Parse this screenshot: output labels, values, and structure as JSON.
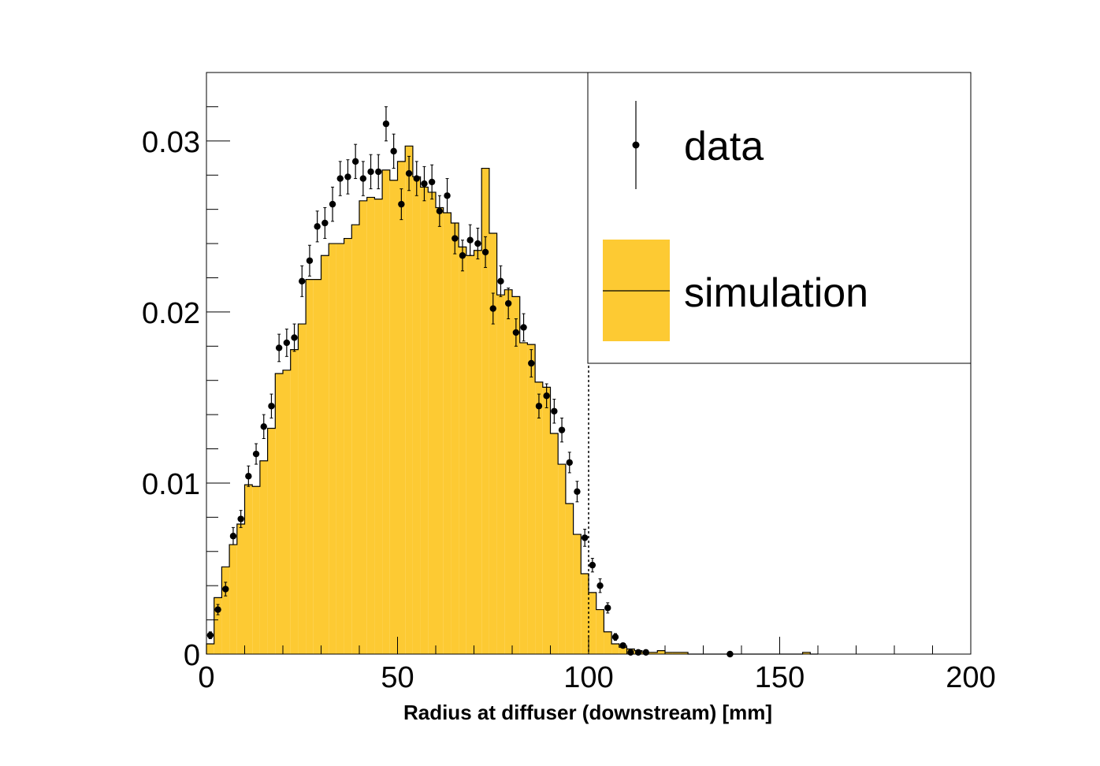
{
  "chart_data": {
    "type": "bar",
    "title": "",
    "xlabel": "Radius at diffuser (downstream) [mm]",
    "ylabel": "",
    "xlim": [
      0,
      200
    ],
    "ylim": [
      0,
      0.034
    ],
    "x_tick_labels": [
      "0",
      "50",
      "100",
      "150",
      "200"
    ],
    "y_tick_labels": [
      "0",
      "0.01",
      "0.02",
      "0.03"
    ],
    "x_ticks": [
      0,
      50,
      100,
      150,
      200
    ],
    "y_ticks": [
      0,
      0.01,
      0.02,
      0.03
    ],
    "bin_width": 2,
    "cut_line_x": 100,
    "grid": false,
    "legend_position": "top-right",
    "colors": {
      "simulation_fill": "#fdca33",
      "outline": "#000000",
      "data_marker": "#000000"
    },
    "series": [
      {
        "name": "simulation",
        "style": "filled-histogram",
        "bin_edges_start": 0,
        "values": [
          0.0006,
          0.0033,
          0.0051,
          0.0064,
          0.0076,
          0.0099,
          0.0098,
          0.0113,
          0.0132,
          0.0164,
          0.0166,
          0.0178,
          0.0193,
          0.0219,
          0.0219,
          0.0233,
          0.024,
          0.024,
          0.0243,
          0.0251,
          0.0265,
          0.0267,
          0.0266,
          0.0283,
          0.0277,
          0.0288,
          0.0297,
          0.0279,
          0.0273,
          0.027,
          0.0261,
          0.0258,
          0.0252,
          0.0238,
          0.0233,
          0.0236,
          0.0284,
          0.0246,
          0.021,
          0.0213,
          0.0209,
          0.0182,
          0.0181,
          0.0159,
          0.0156,
          0.0129,
          0.0111,
          0.0088,
          0.007,
          0.0047,
          0.0036,
          0.0026,
          0.0013,
          0.0006,
          0.0004,
          0.0003,
          0.0002,
          0.0001,
          0.0001,
          0.0002,
          0.0001,
          0.0001,
          0.0001,
          0.0,
          0.0,
          0.0,
          0.0,
          0.0,
          0.0,
          0.0,
          0.0,
          0.0,
          0.0,
          0.0,
          0.0,
          0.0,
          0.0,
          0.0,
          0.0001,
          0.0
        ]
      },
      {
        "name": "data",
        "style": "points-with-error-bars",
        "x": [
          1,
          3,
          5,
          7,
          9,
          11,
          13,
          15,
          17,
          19,
          21,
          23,
          25,
          27,
          29,
          31,
          33,
          35,
          37,
          39,
          41,
          43,
          45,
          47,
          49,
          51,
          53,
          55,
          57,
          59,
          61,
          63,
          65,
          67,
          69,
          71,
          73,
          75,
          77,
          79,
          81,
          83,
          85,
          87,
          89,
          91,
          93,
          95,
          97,
          99,
          101,
          103,
          105,
          107,
          109,
          111,
          113,
          115,
          137
        ],
        "y": [
          0.0011,
          0.0026,
          0.0038,
          0.0069,
          0.0079,
          0.0104,
          0.0117,
          0.0133,
          0.0145,
          0.0179,
          0.0182,
          0.0185,
          0.0218,
          0.023,
          0.025,
          0.0252,
          0.0263,
          0.0278,
          0.0279,
          0.0288,
          0.0278,
          0.0282,
          0.0282,
          0.031,
          0.0294,
          0.0263,
          0.0281,
          0.0278,
          0.0275,
          0.0276,
          0.0259,
          0.0268,
          0.0243,
          0.0233,
          0.0242,
          0.024,
          0.0235,
          0.0202,
          0.0218,
          0.0205,
          0.0188,
          0.0191,
          0.017,
          0.0145,
          0.0151,
          0.0142,
          0.0131,
          0.0112,
          0.0095,
          0.0068,
          0.0052,
          0.004,
          0.0027,
          0.001,
          0.0005,
          0.0001,
          0.0001,
          0.0001,
          0.0
        ],
        "yerr": [
          0.0002,
          0.0003,
          0.0004,
          0.0005,
          0.0005,
          0.0006,
          0.0006,
          0.0007,
          0.0007,
          0.0008,
          0.0008,
          0.0008,
          0.0009,
          0.0009,
          0.0009,
          0.0009,
          0.001,
          0.001,
          0.001,
          0.001,
          0.001,
          0.001,
          0.001,
          0.001,
          0.001,
          0.0009,
          0.001,
          0.001,
          0.001,
          0.001,
          0.0009,
          0.001,
          0.0009,
          0.0009,
          0.0009,
          0.0009,
          0.0009,
          0.0009,
          0.0009,
          0.0009,
          0.0008,
          0.0008,
          0.0008,
          0.0007,
          0.0007,
          0.0007,
          0.0007,
          0.0006,
          0.0006,
          0.0005,
          0.0004,
          0.0004,
          0.0003,
          0.0002,
          0.0001,
          0.0001,
          0.0001,
          0.0001,
          0.0
        ]
      }
    ]
  },
  "legend": {
    "entries": [
      {
        "label": "data",
        "marker": "point"
      },
      {
        "label": "simulation",
        "marker": "filled-box"
      }
    ]
  }
}
